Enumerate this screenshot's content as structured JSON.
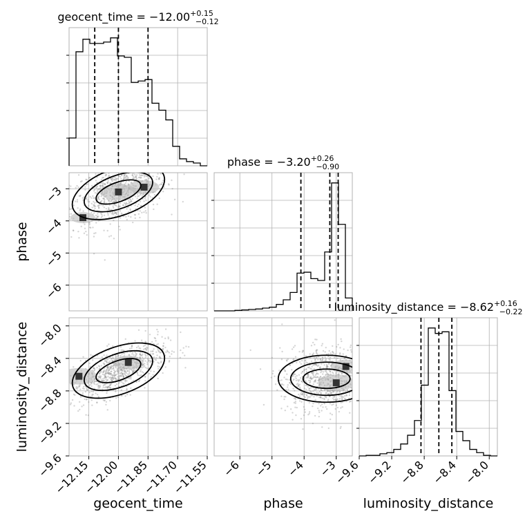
{
  "chart_data": {
    "type": "corner",
    "parameters": [
      {
        "name": "geocent_time",
        "label": "geocent_time",
        "title": {
          "prefix": "geocent_time = ",
          "median": "−12.00",
          "upper": "+0.15",
          "lower": "−0.12"
        },
        "range": [
          -12.25,
          -11.55
        ],
        "ticks": [
          -12.15,
          -12.0,
          -11.85,
          -11.7,
          -11.55
        ],
        "tick_labels": [
          "−12.15",
          "−12.00",
          "−11.85",
          "−11.70",
          "−11.55"
        ],
        "quantiles": [
          -12.12,
          -12.0,
          -11.85
        ],
        "histogram": {
          "edges": [
            -12.25,
            -12.215,
            -12.18,
            -12.145,
            -12.11,
            -12.075,
            -12.04,
            -12.005,
            -11.97,
            -11.935,
            -11.9,
            -11.865,
            -11.83,
            -11.795,
            -11.76,
            -11.725,
            -11.69,
            -11.655,
            -11.62,
            -11.585,
            -11.55
          ],
          "counts": [
            20,
            82,
            91,
            88,
            88,
            89,
            92,
            79,
            78,
            60,
            61,
            62,
            45,
            40,
            33,
            14,
            5,
            3,
            2,
            0
          ]
        }
      },
      {
        "name": "phase",
        "label": "phase",
        "title": {
          "prefix": "phase = ",
          "median": "−3.20",
          "upper": "+0.26",
          "lower": "−0.90"
        },
        "range": [
          -6.8,
          -2.5
        ],
        "ticks": [
          -6,
          -5,
          -4,
          -3
        ],
        "tick_labels": [
          "−6",
          "−5",
          "−4",
          "−3"
        ],
        "quantiles": [
          -4.1,
          -3.2,
          -2.94
        ],
        "histogram": {
          "edges": [
            -6.8,
            -6.585,
            -6.37,
            -6.155,
            -5.94,
            -5.725,
            -5.51,
            -5.295,
            -5.08,
            -4.865,
            -4.65,
            -4.435,
            -4.22,
            -4.005,
            -3.79,
            -3.575,
            -3.36,
            -3.145,
            -2.93,
            -2.715,
            -2.5
          ],
          "counts": [
            0,
            0,
            0,
            1,
            2,
            3,
            4,
            6,
            8,
            14,
            24,
            40,
            82,
            84,
            70,
            66,
            128,
            278,
            188,
            28
          ]
        }
      },
      {
        "name": "luminosity_distance",
        "label": "luminosity_distance",
        "title": {
          "prefix": "luminosity_distance = ",
          "median": "−8.62",
          "upper": "+0.16",
          "lower": "−0.22"
        },
        "range": [
          -9.6,
          -7.9
        ],
        "ticks": [
          -9.6,
          -9.2,
          -8.8,
          -8.4,
          -8.0
        ],
        "tick_labels": [
          "−9.6",
          "−9.2",
          "−8.8",
          "−8.4",
          "−8.0"
        ],
        "quantiles": [
          -8.84,
          -8.62,
          -8.46
        ],
        "histogram": {
          "edges": [
            -9.6,
            -9.515,
            -9.43,
            -9.345,
            -9.26,
            -9.175,
            -9.09,
            -9.005,
            -8.92,
            -8.835,
            -8.75,
            -8.665,
            -8.58,
            -8.495,
            -8.41,
            -8.325,
            -8.24,
            -8.155,
            -8.07,
            -7.985,
            -7.9
          ],
          "counts": [
            0,
            1,
            1,
            4,
            6,
            12,
            22,
            38,
            65,
            130,
            235,
            225,
            228,
            120,
            45,
            28,
            12,
            6,
            1,
            0
          ]
        }
      }
    ],
    "density": {
      "phase_vs_geocent_time": {
        "center": [
          -12.0,
          -3.1
        ],
        "modes": [
          [
            -12.0,
            -3.1
          ],
          [
            -11.87,
            -2.95
          ],
          [
            -12.18,
            -3.9
          ]
        ]
      },
      "luminosity_distance_vs_geocent_time": {
        "center": [
          -12.0,
          -8.55
        ],
        "modes": [
          [
            -12.2,
            -8.62
          ],
          [
            -11.95,
            -8.45
          ]
        ]
      },
      "luminosity_distance_vs_phase": {
        "center": [
          -3.3,
          -8.65
        ],
        "modes": [
          [
            -3.0,
            -8.7
          ],
          [
            -2.7,
            -8.5
          ]
        ]
      }
    },
    "grid": true
  }
}
